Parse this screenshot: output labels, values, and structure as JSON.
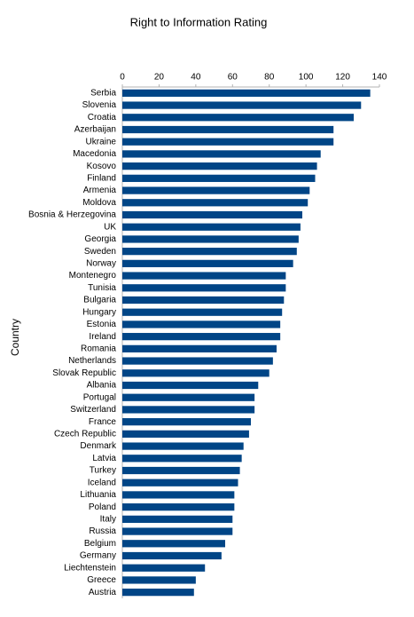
{
  "chart_data": {
    "type": "bar",
    "orientation": "horizontal",
    "title": "Right to Information Rating",
    "y_label": "Country",
    "categories": [
      "Serbia",
      "Slovenia",
      "Croatia",
      "Azerbaijan",
      "Ukraine",
      "Macedonia",
      "Kosovo",
      "Finland",
      "Armenia",
      "Moldova",
      "Bosnia & Herzegovina",
      "UK",
      "Georgia",
      "Sweden",
      "Norway",
      "Montenegro",
      "Tunisia",
      "Bulgaria",
      "Hungary",
      "Estonia",
      "Ireland",
      "Romania",
      "Netherlands",
      "Slovak Republic",
      "Albania",
      "Portugal",
      "Switzerland",
      "France",
      "Czech Republic",
      "Denmark",
      "Latvia",
      "Turkey",
      "Iceland",
      "Lithuania",
      "Poland",
      "Italy",
      "Russia",
      "Belgium",
      "Germany",
      "Liechtenstein",
      "Greece",
      "Austria"
    ],
    "values": [
      135,
      130,
      126,
      115,
      115,
      108,
      106,
      105,
      102,
      101,
      98,
      97,
      96,
      95,
      93,
      89,
      89,
      88,
      87,
      86,
      86,
      84,
      82,
      80,
      74,
      72,
      72,
      70,
      69,
      66,
      65,
      64,
      63,
      61,
      61,
      60,
      60,
      56,
      54,
      45,
      40,
      39
    ],
    "color": "#004586",
    "xlim": [
      0,
      140
    ],
    "xticks": [
      0,
      20,
      40,
      60,
      80,
      100,
      120,
      140
    ],
    "grid": false
  }
}
